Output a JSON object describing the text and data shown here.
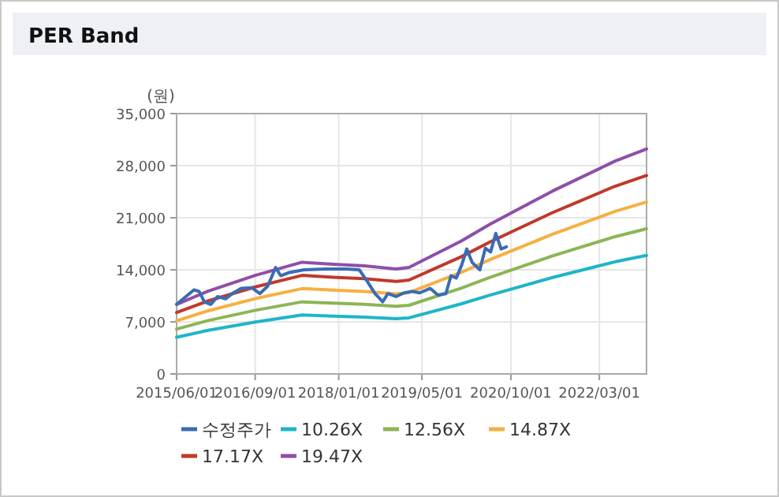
{
  "chart_data": {
    "type": "line",
    "title": "PER Band",
    "ylabel": "(원)",
    "xlim": [
      "2015-06-01",
      "2022-12-01"
    ],
    "xticks": [
      {
        "value": "2015-06-01",
        "label": "2015/06/01"
      },
      {
        "value": "2016-09-01",
        "label": "2016/09/01"
      },
      {
        "value": "2018-01-01",
        "label": "2018/01/01"
      },
      {
        "value": "2019-05-01",
        "label": "2019/05/01"
      },
      {
        "value": "2020-10-01",
        "label": "2020/10/01"
      },
      {
        "value": "2022-03-01",
        "label": "2022/03/01"
      }
    ],
    "ylim": [
      0,
      35000
    ],
    "yticks": [
      0,
      {
        "value": 7000,
        "label": "7,000"
      },
      {
        "value": 14000,
        "label": "14,000"
      },
      {
        "value": 21000,
        "label": "21,000"
      },
      {
        "value": 28000,
        "label": "28,000"
      },
      {
        "value": 35000,
        "label": "35,000"
      }
    ],
    "grid": true,
    "legend": "bottom",
    "marker": "none",
    "line_style": "solid",
    "series": [
      {
        "name": "수정주가",
        "color": "#3a6bb5",
        "x": [
          "2015-06-01",
          "2015-07-25",
          "2015-09-10",
          "2015-10-10",
          "2015-11-10",
          "2015-12-17",
          "2016-01-26",
          "2016-03-12",
          "2016-04-27",
          "2016-06-12",
          "2016-08-12",
          "2016-09-28",
          "2016-11-13",
          "2016-12-29",
          "2017-01-28",
          "2017-03-13",
          "2017-06-13",
          "2017-10-15",
          "2018-02-15",
          "2018-05-01",
          "2018-06-15",
          "2018-08-01",
          "2018-09-15",
          "2018-10-15",
          "2018-12-01",
          "2019-01-18",
          "2019-03-03",
          "2019-04-18",
          "2019-06-18",
          "2019-08-03",
          "2019-09-18",
          "2019-10-18",
          "2019-11-18",
          "2019-12-20",
          "2020-01-18",
          "2020-02-18",
          "2020-04-03",
          "2020-05-05",
          "2020-06-05",
          "2020-07-05",
          "2020-08-05",
          "2020-09-05"
        ],
        "values": [
          9350,
          10400,
          11300,
          11100,
          9700,
          9350,
          10400,
          10100,
          10900,
          11500,
          11600,
          10800,
          11800,
          14300,
          13200,
          13600,
          14000,
          14100,
          14100,
          14000,
          12500,
          10800,
          9700,
          10800,
          10400,
          10900,
          11100,
          10900,
          11500,
          10600,
          10800,
          13200,
          12900,
          14700,
          16800,
          15000,
          14000,
          16900,
          16400,
          18900,
          16800,
          17100
        ]
      },
      {
        "name": "10.26X",
        "color": "#1fb5c8",
        "x": [
          "2015-06-01",
          "2015-12-01",
          "2016-09-01",
          "2017-06-01",
          "2017-12-01",
          "2018-06-01",
          "2018-12-01",
          "2019-02-15",
          "2019-12-15",
          "2020-06-01",
          "2021-06-01",
          "2022-06-01",
          "2022-12-01"
        ],
        "values": [
          4930,
          5860,
          6980,
          7920,
          7770,
          7650,
          7430,
          7540,
          9410,
          10600,
          12960,
          15080,
          15940
        ]
      },
      {
        "name": "12.56X",
        "color": "#8db556",
        "x": [
          "2015-06-01",
          "2015-12-01",
          "2016-09-01",
          "2017-06-01",
          "2017-12-01",
          "2018-06-01",
          "2018-12-01",
          "2019-02-15",
          "2019-12-15",
          "2020-06-01",
          "2021-06-01",
          "2022-06-01",
          "2022-12-01"
        ],
        "values": [
          6030,
          7170,
          8550,
          9690,
          9510,
          9370,
          9100,
          9230,
          11520,
          12980,
          15860,
          18460,
          19510
        ]
      },
      {
        "name": "14.87X",
        "color": "#f5b042",
        "x": [
          "2015-06-01",
          "2015-12-01",
          "2016-09-01",
          "2017-06-01",
          "2017-12-01",
          "2018-06-01",
          "2018-12-01",
          "2019-02-15",
          "2019-12-15",
          "2020-06-01",
          "2021-06-01",
          "2022-06-01",
          "2022-12-01"
        ],
        "values": [
          7140,
          8490,
          10120,
          11470,
          11260,
          11090,
          10770,
          10930,
          13630,
          15370,
          18780,
          21860,
          23100
        ]
      },
      {
        "name": "17.17X",
        "color": "#c0392b",
        "x": [
          "2015-06-01",
          "2015-12-01",
          "2016-09-01",
          "2017-06-01",
          "2017-12-01",
          "2018-06-01",
          "2018-12-01",
          "2019-02-15",
          "2019-12-15",
          "2020-06-01",
          "2021-06-01",
          "2022-06-01",
          "2022-12-01"
        ],
        "values": [
          8250,
          9810,
          11690,
          13250,
          13000,
          12810,
          12430,
          12620,
          15740,
          17740,
          21690,
          25240,
          26680
        ]
      },
      {
        "name": "19.47X",
        "color": "#8e4fa8",
        "x": [
          "2015-06-01",
          "2015-12-01",
          "2016-09-01",
          "2017-06-01",
          "2017-12-01",
          "2018-06-01",
          "2018-12-01",
          "2019-02-15",
          "2019-12-15",
          "2020-06-01",
          "2021-06-01",
          "2022-06-01",
          "2022-12-01"
        ],
        "values": [
          9350,
          11120,
          13250,
          15020,
          14740,
          14520,
          14100,
          14310,
          17850,
          20120,
          24590,
          28620,
          30250
        ]
      }
    ]
  }
}
